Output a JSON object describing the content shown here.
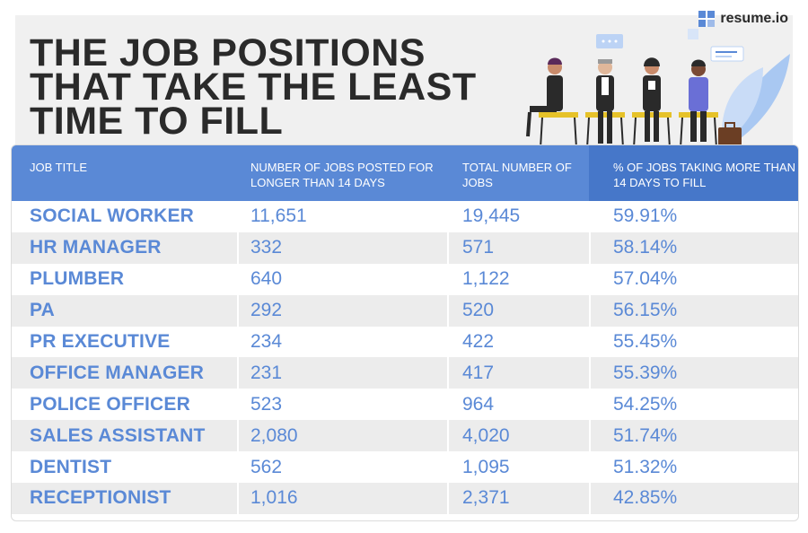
{
  "brand": {
    "name": "resume.io"
  },
  "colors": {
    "accent": "#5a89d6",
    "accent_dark": "#4677c9",
    "title": "#2a2a2a",
    "row_alt": "#ececec"
  },
  "chart_data": {
    "type": "table",
    "title": "THE JOB POSITIONS THAT TAKE THE LEAST TIME TO FILL",
    "columns": [
      "JOB TITLE",
      "NUMBER OF JOBS POSTED FOR LONGER THAN 14 DAYS",
      "TOTAL NUMBER OF JOBS",
      "% OF JOBS TAKING MORE THAN 14 DAYS TO FILL"
    ],
    "rows": [
      [
        "SOCIAL WORKER",
        "11,651",
        "19,445",
        "59.91%"
      ],
      [
        "HR MANAGER",
        "332",
        "571",
        "58.14%"
      ],
      [
        "PLUMBER",
        "640",
        "1,122",
        "57.04%"
      ],
      [
        "PA",
        "292",
        "520",
        "56.15%"
      ],
      [
        "PR EXECUTIVE",
        "234",
        "422",
        "55.45%"
      ],
      [
        "OFFICE MANAGER",
        "231",
        "417",
        "55.39%"
      ],
      [
        "POLICE OFFICER",
        "523",
        "964",
        "54.25%"
      ],
      [
        "SALES ASSISTANT",
        "2,080",
        "4,020",
        "51.74%"
      ],
      [
        "DENTIST",
        "562",
        "1,095",
        "51.32%"
      ],
      [
        "RECEPTIONIST",
        "1,016",
        "2,371",
        "42.85%"
      ]
    ]
  }
}
